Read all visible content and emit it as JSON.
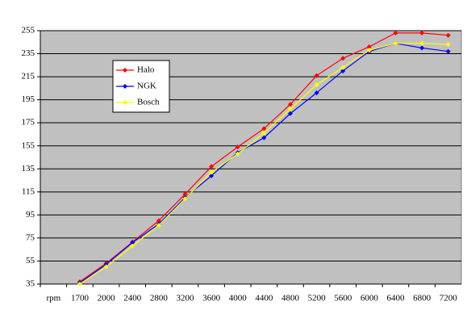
{
  "chart_data": {
    "type": "line",
    "categories": [
      "rpm",
      "1700",
      "2000",
      "2400",
      "2800",
      "3200",
      "3600",
      "4000",
      "4400",
      "4800",
      "5200",
      "5600",
      "6000",
      "6400",
      "6800",
      "7200"
    ],
    "series": [
      {
        "name": "Halo",
        "color": "#ff0000",
        "values": [
          null,
          37,
          53,
          71.5,
          90,
          113,
          137,
          154,
          170,
          191,
          216,
          231,
          241,
          253,
          253,
          251
        ]
      },
      {
        "name": "NGK",
        "color": "#0000ff",
        "values": [
          null,
          36,
          52,
          71,
          87,
          110,
          129,
          149,
          162,
          183,
          201,
          220,
          237,
          244,
          240,
          237
        ]
      },
      {
        "name": "Bosch",
        "color": "#ffff00",
        "values": [
          null,
          35,
          50,
          68,
          86,
          109,
          132,
          148,
          166,
          187,
          208,
          223,
          238,
          244,
          244,
          243
        ]
      }
    ],
    "ylim": [
      35,
      255
    ],
    "yticks": [
      35,
      55,
      75,
      95,
      115,
      135,
      155,
      175,
      195,
      215,
      235,
      255
    ],
    "grid": true,
    "legend": "upper left",
    "background": "#c0c0c0"
  }
}
